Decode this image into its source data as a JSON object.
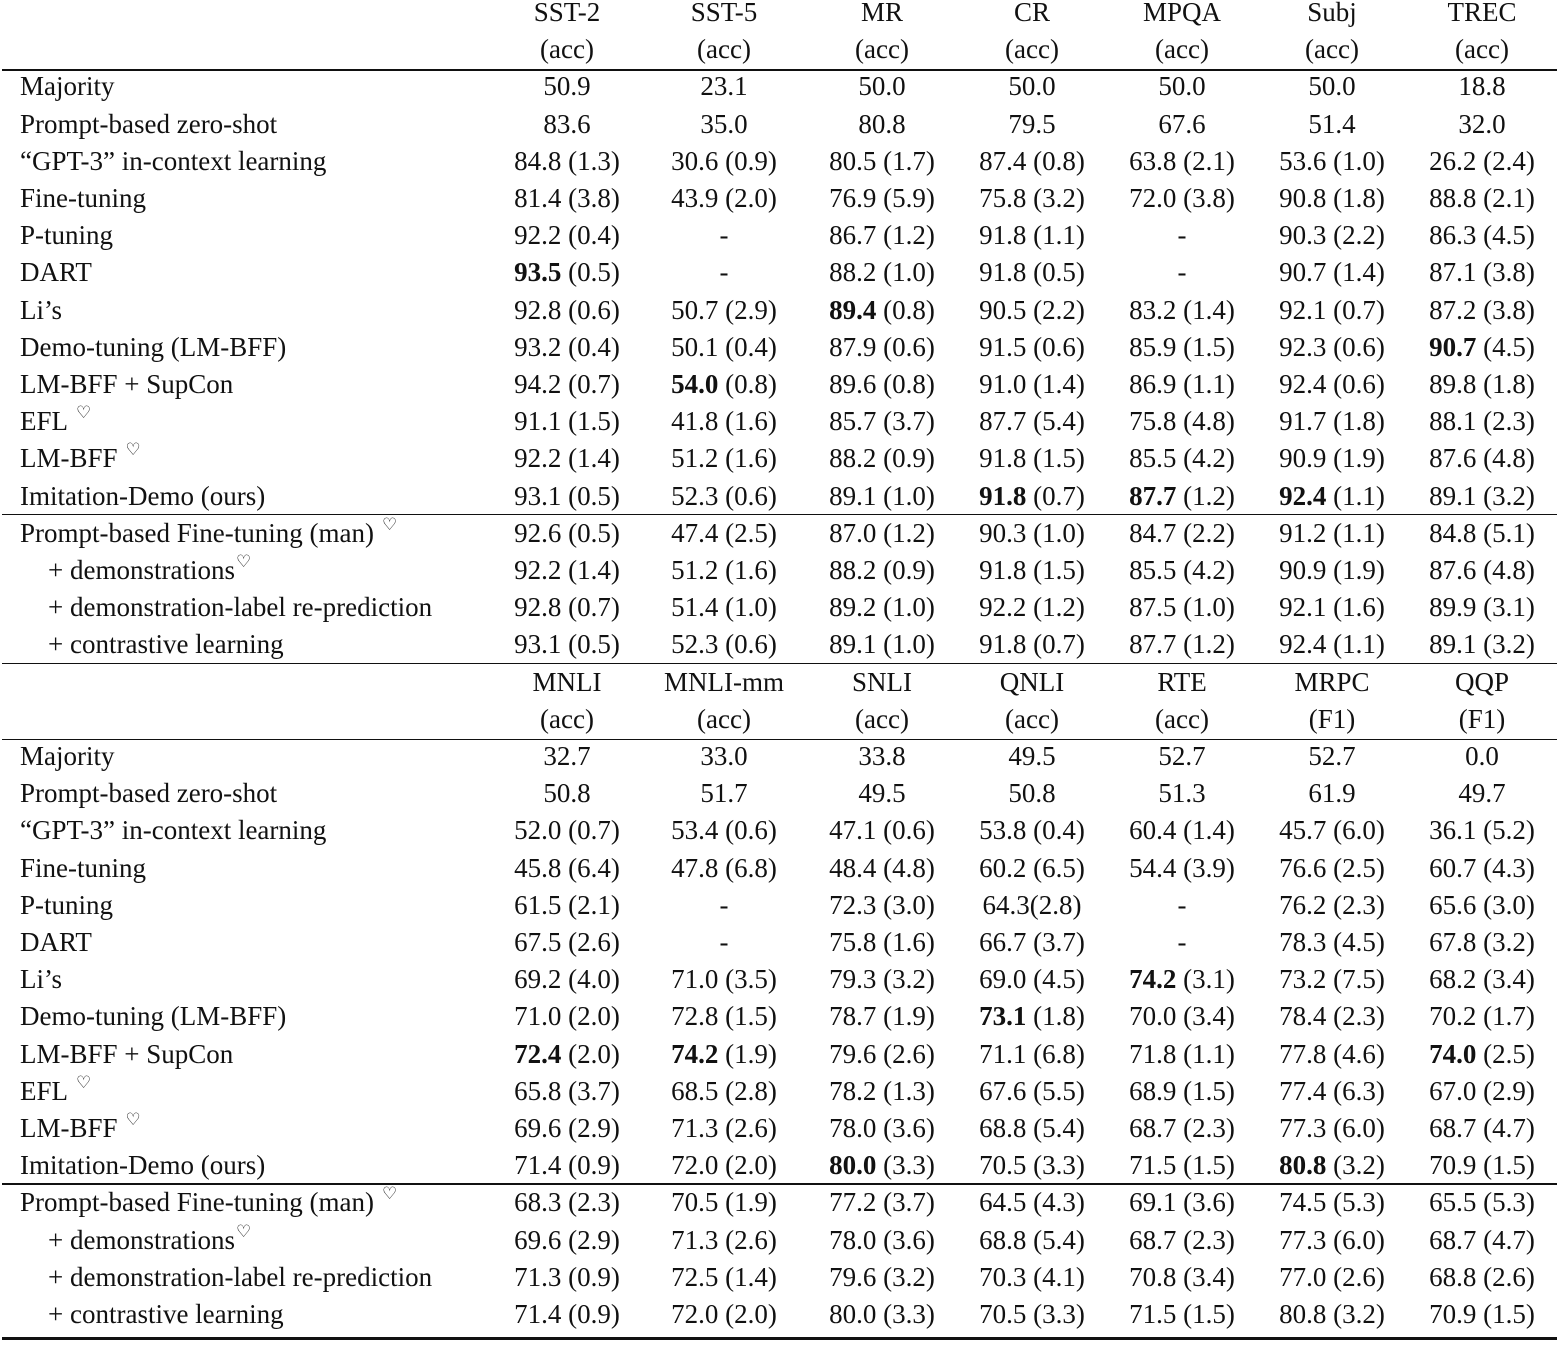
{
  "sections": [
    {
      "header": {
        "datasets": [
          "SST-2",
          "SST-5",
          "MR",
          "CR",
          "MPQA",
          "Subj",
          "TREC"
        ],
        "metrics": [
          "(acc)",
          "(acc)",
          "(acc)",
          "(acc)",
          "(acc)",
          "(acc)",
          "(acc)"
        ]
      },
      "main_rows": [
        {
          "label": "Majority",
          "cells": [
            "50.9",
            "23.1",
            "50.0",
            "50.0",
            "50.0",
            "50.0",
            "18.8"
          ]
        },
        {
          "label": "Prompt-based zero-shot",
          "cells": [
            "83.6",
            "35.0",
            "80.8",
            "79.5",
            "67.6",
            "51.4",
            "32.0"
          ]
        },
        {
          "label": "“GPT-3” in-context learning",
          "cells": [
            "84.8 (1.3)",
            "30.6 (0.9)",
            "80.5 (1.7)",
            "87.4 (0.8)",
            "63.8 (2.1)",
            "53.6 (1.0)",
            "26.2 (2.4)"
          ]
        },
        {
          "label": "Fine-tuning",
          "cells": [
            "81.4 (3.8)",
            "43.9 (2.0)",
            "76.9 (5.9)",
            "75.8 (3.2)",
            "72.0 (3.8)",
            "90.8 (1.8)",
            "88.8 (2.1)"
          ]
        },
        {
          "label": "P-tuning",
          "cells": [
            "92.2 (0.4)",
            "-",
            "86.7 (1.2)",
            "91.8 (1.1)",
            "-",
            "90.3 (2.2)",
            "86.3 (4.5)"
          ]
        },
        {
          "label": "DART",
          "cells": [
            {
              "bold": "93.5",
              "sd": " (0.5)"
            },
            "-",
            "88.2 (1.0)",
            "91.8 (0.5)",
            "-",
            "90.7 (1.4)",
            "87.1 (3.8)"
          ]
        },
        {
          "label": "Li’s",
          "cells": [
            "92.8 (0.6)",
            "50.7 (2.9)",
            {
              "bold": "89.4",
              "sd": " (0.8)"
            },
            "90.5 (2.2)",
            "83.2 (1.4)",
            "92.1 (0.7)",
            "87.2 (3.8)"
          ]
        },
        {
          "label": "Demo-tuning (LM-BFF)",
          "cells": [
            "93.2 (0.4)",
            "50.1 (0.4)",
            "87.9 (0.6)",
            "91.5 (0.6)",
            "85.9 (1.5)",
            "92.3 (0.6)",
            {
              "bold": "90.7",
              "sd": " (4.5)"
            }
          ]
        },
        {
          "label": "LM-BFF + SupCon",
          "cells": [
            "94.2 (0.7)",
            {
              "bold": "54.0",
              "sd": " (0.8)"
            },
            "89.6 (0.8)",
            "91.0 (1.4)",
            "86.9 (1.1)",
            "92.4 (0.6)",
            "89.8 (1.8)"
          ]
        },
        {
          "label": "EFL",
          "sup": "♡",
          "cells": [
            "91.1 (1.5)",
            "41.8 (1.6)",
            "85.7 (3.7)",
            "87.7 (5.4)",
            "75.8 (4.8)",
            "91.7 (1.8)",
            "88.1 (2.3)"
          ]
        },
        {
          "label": "LM-BFF",
          "sup": "♡",
          "cells": [
            "92.2 (1.4)",
            "51.2 (1.6)",
            "88.2 (0.9)",
            "91.8 (1.5)",
            "85.5 (4.2)",
            "90.9 (1.9)",
            "87.6 (4.8)"
          ]
        },
        {
          "label": "Imitation-Demo (ours)",
          "cells": [
            "93.1 (0.5)",
            "52.3 (0.6)",
            "89.1 (1.0)",
            {
              "bold": "91.8",
              "sd": " (0.7)"
            },
            {
              "bold": "87.7",
              "sd": " (1.2)"
            },
            {
              "bold": "92.4",
              "sd": " (1.1)"
            },
            "89.1 (3.2)"
          ]
        }
      ],
      "ablation_rows": [
        {
          "label": "Prompt-based Fine-tuning (man)",
          "sup": "♡",
          "cells": [
            "92.6 (0.5)",
            "47.4 (2.5)",
            "87.0 (1.2)",
            "90.3 (1.0)",
            "84.7 (2.2)",
            "91.2 (1.1)",
            "84.8 (5.1)"
          ]
        },
        {
          "label": "+ demonstrations",
          "sup": "♡",
          "indent": true,
          "cells": [
            "92.2 (1.4)",
            "51.2 (1.6)",
            "88.2 (0.9)",
            "91.8 (1.5)",
            "85.5 (4.2)",
            "90.9 (1.9)",
            "87.6 (4.8)"
          ]
        },
        {
          "label": "+ demonstration-label re-prediction",
          "indent": true,
          "cells": [
            "92.8 (0.7)",
            "51.4 (1.0)",
            "89.2 (1.0)",
            "92.2 (1.2)",
            "87.5 (1.0)",
            "92.1 (1.6)",
            "89.9 (3.1)"
          ]
        },
        {
          "label": "+ contrastive learning",
          "indent": true,
          "cells": [
            "93.1 (0.5)",
            "52.3 (0.6)",
            "89.1 (1.0)",
            "91.8 (0.7)",
            "87.7 (1.2)",
            "92.4 (1.1)",
            "89.1 (3.2)"
          ]
        }
      ]
    },
    {
      "header": {
        "datasets": [
          "MNLI",
          "MNLI-mm",
          "SNLI",
          "QNLI",
          "RTE",
          "MRPC",
          "QQP"
        ],
        "metrics": [
          "(acc)",
          "(acc)",
          "(acc)",
          "(acc)",
          "(acc)",
          "(F1)",
          "(F1)"
        ]
      },
      "main_rows": [
        {
          "label": "Majority",
          "cells": [
            "32.7",
            "33.0",
            "33.8",
            "49.5",
            "52.7",
            "52.7",
            "0.0"
          ]
        },
        {
          "label": "Prompt-based zero-shot",
          "cells": [
            "50.8",
            "51.7",
            "49.5",
            "50.8",
            "51.3",
            "61.9",
            "49.7"
          ]
        },
        {
          "label": "“GPT-3” in-context learning",
          "cells": [
            "52.0 (0.7)",
            "53.4 (0.6)",
            "47.1 (0.6)",
            "53.8 (0.4)",
            "60.4 (1.4)",
            "45.7 (6.0)",
            "36.1 (5.2)"
          ]
        },
        {
          "label": "Fine-tuning",
          "cells": [
            "45.8 (6.4)",
            "47.8 (6.8)",
            "48.4 (4.8)",
            "60.2 (6.5)",
            "54.4 (3.9)",
            "76.6 (2.5)",
            "60.7 (4.3)"
          ]
        },
        {
          "label": "P-tuning",
          "cells": [
            "61.5 (2.1)",
            "-",
            "72.3 (3.0)",
            "64.3(2.8)",
            "-",
            "76.2 (2.3)",
            "65.6 (3.0)"
          ]
        },
        {
          "label": "DART",
          "cells": [
            "67.5 (2.6)",
            "-",
            "75.8 (1.6)",
            "66.7 (3.7)",
            "-",
            "78.3 (4.5)",
            "67.8 (3.2)"
          ]
        },
        {
          "label": "Li’s",
          "cells": [
            "69.2 (4.0)",
            "71.0 (3.5)",
            "79.3 (3.2)",
            "69.0 (4.5)",
            {
              "bold": "74.2",
              "sd": " (3.1)"
            },
            "73.2 (7.5)",
            "68.2 (3.4)"
          ]
        },
        {
          "label": "Demo-tuning (LM-BFF)",
          "cells": [
            "71.0 (2.0)",
            "72.8 (1.5)",
            "78.7 (1.9)",
            {
              "bold": "73.1",
              "sd": " (1.8)"
            },
            "70.0 (3.4)",
            "78.4 (2.3)",
            "70.2 (1.7)"
          ]
        },
        {
          "label": "LM-BFF + SupCon",
          "cells": [
            {
              "bold": "72.4",
              "sd": " (2.0)"
            },
            {
              "bold": "74.2",
              "sd": " (1.9)"
            },
            "79.6 (2.6)",
            "71.1 (6.8)",
            "71.8 (1.1)",
            "77.8 (4.6)",
            {
              "bold": "74.0",
              "sd": " (2.5)"
            }
          ]
        },
        {
          "label": "EFL",
          "sup": "♡",
          "cells": [
            "65.8 (3.7)",
            "68.5 (2.8)",
            "78.2 (1.3)",
            "67.6 (5.5)",
            "68.9 (1.5)",
            "77.4 (6.3)",
            "67.0 (2.9)"
          ]
        },
        {
          "label": "LM-BFF",
          "sup": "♡",
          "cells": [
            "69.6 (2.9)",
            "71.3 (2.6)",
            "78.0 (3.6)",
            "68.8 (5.4)",
            "68.7 (2.3)",
            "77.3 (6.0)",
            "68.7 (4.7)"
          ]
        },
        {
          "label": "Imitation-Demo (ours)",
          "cells": [
            "71.4 (0.9)",
            "72.0 (2.0)",
            {
              "bold": "80.0",
              "sd": " (3.3)"
            },
            "70.5 (3.3)",
            "71.5 (1.5)",
            {
              "bold": "80.8",
              "sd": " (3.2)"
            },
            "70.9 (1.5)"
          ]
        }
      ],
      "ablation_rows": [
        {
          "label": "Prompt-based Fine-tuning (man)",
          "sup": "♡",
          "cells": [
            "68.3 (2.3)",
            "70.5 (1.9)",
            "77.2 (3.7)",
            "64.5 (4.3)",
            "69.1 (3.6)",
            "74.5 (5.3)",
            "65.5 (5.3)"
          ]
        },
        {
          "label": "+ demonstrations",
          "sup": "♡",
          "indent": true,
          "cells": [
            "69.6 (2.9)",
            "71.3 (2.6)",
            "78.0 (3.6)",
            "68.8 (5.4)",
            "68.7 (2.3)",
            "77.3 (6.0)",
            "68.7 (4.7)"
          ]
        },
        {
          "label": "+ demonstration-label re-prediction",
          "indent": true,
          "cells": [
            "71.3 (0.9)",
            "72.5 (1.4)",
            "79.6 (3.2)",
            "70.3 (4.1)",
            "70.8 (3.4)",
            "77.0 (2.6)",
            "68.8 (2.6)"
          ]
        },
        {
          "label": "+ contrastive learning",
          "indent": true,
          "cells": [
            "71.4 (0.9)",
            "72.0 (2.0)",
            "80.0 (3.3)",
            "70.5 (3.3)",
            "71.5 (1.5)",
            "80.8 (3.2)",
            "70.9 (1.5)"
          ]
        }
      ]
    }
  ]
}
